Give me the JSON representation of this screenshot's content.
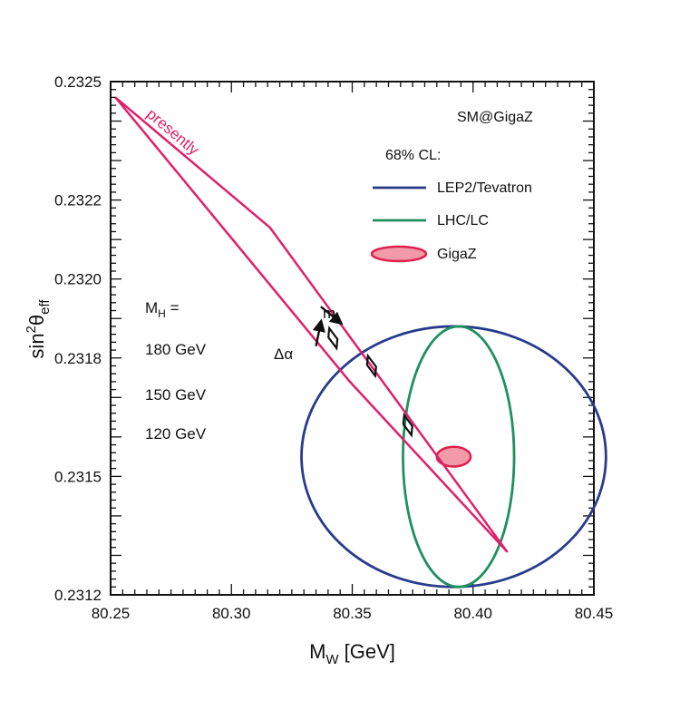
{
  "chart_data": {
    "type": "line",
    "title": "",
    "xlabel": {
      "main": "M",
      "sub": "W",
      "unit": "[GeV]"
    },
    "ylabel": {
      "main": "sin",
      "sup": "2",
      "theta": "θ",
      "sub": "eff"
    },
    "xlim": [
      80.25,
      80.45
    ],
    "ylim": [
      0.2312,
      0.2325
    ],
    "x_ticks": [
      80.25,
      80.3,
      80.35,
      80.4,
      80.45
    ],
    "x_tick_labels": [
      "80.25",
      "80.30",
      "80.35",
      "80.40",
      "80.45"
    ],
    "y_ticks": [
      0.2312,
      0.2315,
      0.2318,
      0.232,
      0.2322,
      0.2325
    ],
    "y_tick_labels": [
      "0.2312",
      "0.2315",
      "0.2318",
      "0.2320",
      "0.2322",
      "0.2325"
    ],
    "grid": false,
    "legend_placement": "top-right",
    "legend_title": "SM@GigaZ",
    "legend_subtitle": "68% CL:",
    "legend": [
      {
        "label": "LEP2/Tevatron",
        "color": "#283c8c",
        "marker": "line"
      },
      {
        "label": "LHC/LC",
        "color": "#1f9060",
        "marker": "line"
      },
      {
        "label": "GigaZ",
        "color": "#e0204a",
        "marker": "filled-ellipse"
      }
    ],
    "band": {
      "name": "presently",
      "color": "#e0206a",
      "points": [
        [
          80.252,
          0.23246
        ],
        [
          80.316,
          0.23213
        ],
        [
          80.414,
          0.23131
        ],
        [
          80.349,
          0.23174
        ],
        [
          80.252,
          0.23246
        ]
      ]
    },
    "ellipses": [
      {
        "label": "LEP2/Tevatron",
        "color": "#283c8c",
        "center": [
          80.392,
          0.23155
        ],
        "rx": 0.063,
        "ry": 0.00033
      },
      {
        "label": "LHC/LC",
        "color": "#1f9060",
        "center": [
          80.394,
          0.23155
        ],
        "rx": 0.023,
        "ry": 0.00033
      },
      {
        "label": "GigaZ",
        "color": "#e0204a",
        "center": [
          80.392,
          0.23155
        ],
        "rx": 0.007,
        "ry": 2.5e-05
      }
    ],
    "mh_label": {
      "main": "M",
      "sub": "H",
      "eq": "="
    },
    "mh_points": [
      {
        "label": "180 GeV",
        "x": 80.342,
        "y": 0.23185
      },
      {
        "label": "150 GeV",
        "x": 80.358,
        "y": 0.23178
      },
      {
        "label": "120 GeV",
        "x": 80.373,
        "y": 0.23163
      }
    ],
    "arrows": [
      {
        "label": "m",
        "sub": "t",
        "from": [
          80.337,
          0.23193
        ],
        "to": [
          80.345,
          0.23189
        ]
      },
      {
        "label": "Δα",
        "from": [
          80.335,
          0.23183
        ],
        "to": [
          80.337,
          0.23189
        ]
      }
    ]
  }
}
